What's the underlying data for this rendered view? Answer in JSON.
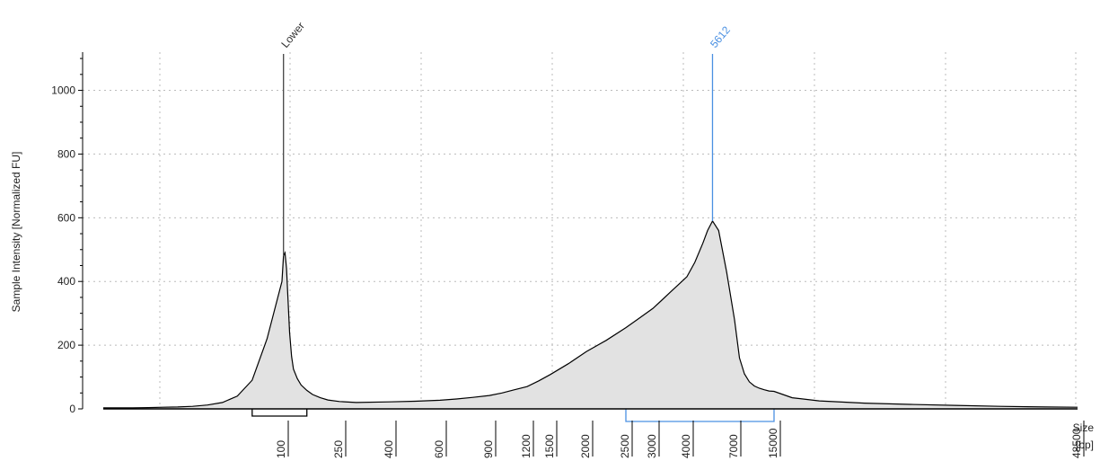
{
  "chart_data": {
    "type": "area",
    "ylabel": "Sample Intensity [Normalized FU]",
    "xlabel_line1": "Size",
    "xlabel_line2": "[bp]",
    "ylim": [
      0,
      1120
    ],
    "y_ticks": [
      0,
      200,
      400,
      600,
      800,
      1000
    ],
    "x_ticks": [
      "100",
      "250",
      "400",
      "600",
      "900",
      "1200",
      "1500",
      "2000",
      "2500",
      "3000",
      "4000",
      "7000",
      "15000",
      "48500"
    ],
    "grid": true,
    "series": [
      {
        "x": [
          40,
          45,
          50,
          55,
          60,
          65,
          70,
          75,
          80,
          85,
          90,
          95,
          100,
          104,
          108,
          112,
          116,
          120,
          125,
          130,
          140,
          150,
          165,
          180,
          200,
          220,
          250,
          300,
          400,
          500,
          600,
          700,
          800,
          900,
          1000,
          1100,
          1200,
          1350,
          1500,
          1750,
          2000,
          2250,
          2500,
          2750,
          3000,
          3250,
          3500,
          4000,
          4500,
          5000,
          5300,
          5612,
          6000,
          6500,
          7000,
          8000,
          9000,
          10000,
          11000,
          12000,
          13000,
          14000,
          15000,
          17000,
          20000,
          25000,
          30000,
          35000,
          40000,
          45000,
          48500
        ],
        "y": [
          3,
          3,
          3,
          4,
          5,
          6,
          8,
          12,
          20,
          40,
          90,
          220,
          400,
          480,
          490,
          440,
          340,
          240,
          165,
          125,
          95,
          75,
          58,
          45,
          35,
          28,
          23,
          20,
          22,
          24,
          27,
          31,
          36,
          42,
          50,
          60,
          70,
          88,
          108,
          142,
          180,
          215,
          255,
          285,
          315,
          340,
          365,
          415,
          460,
          520,
          560,
          590,
          560,
          430,
          280,
          160,
          110,
          85,
          72,
          65,
          60,
          56,
          55,
          35,
          25,
          18,
          14,
          11,
          8,
          6,
          5
        ]
      }
    ],
    "peaks": [
      {
        "label": "Lower",
        "x": 104
      },
      {
        "label": "5612",
        "x": 5612
      }
    ],
    "regions": [
      {
        "from": 90,
        "to": 165
      },
      {
        "from": 2500,
        "to": 15000
      }
    ],
    "colors": {
      "fill": "#e2e2e2",
      "line": "#000000",
      "marker": "#4a90e2",
      "lower_marker": "#444444",
      "grid": "#bbbbbb"
    }
  }
}
